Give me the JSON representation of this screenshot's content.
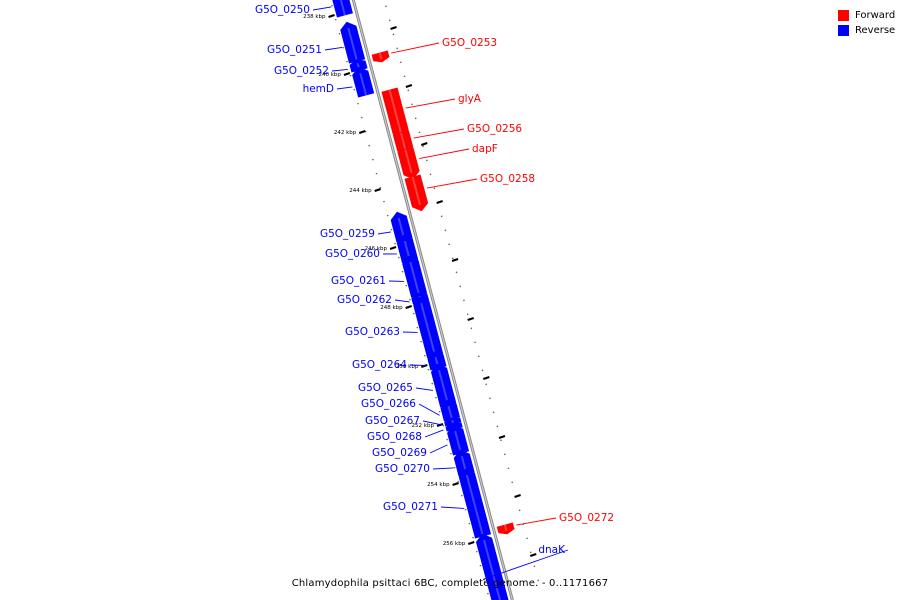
{
  "caption": "Chlamydophila psittaci 6BC, complete genome. - 0..1171667",
  "legend": [
    {
      "label": "Forward",
      "color": "#ff0000"
    },
    {
      "label": "Reverse",
      "color": "#0000ff"
    }
  ],
  "colors": {
    "forward": "#ff0000",
    "reverse": "#0000ff",
    "backbone": "#888888"
  },
  "ticks": [
    {
      "label": "238 kbp",
      "kbp": 238
    },
    {
      "label": "240 kbp",
      "kbp": 240
    },
    {
      "label": "242 kbp",
      "kbp": 242
    },
    {
      "label": "244 kbp",
      "kbp": 244
    },
    {
      "label": "246 kbp",
      "kbp": 246
    },
    {
      "label": "248 kbp",
      "kbp": 248
    },
    {
      "label": "250 kbp",
      "kbp": 250
    },
    {
      "label": "252 kbp",
      "kbp": 252
    },
    {
      "label": "254 kbp",
      "kbp": 254
    },
    {
      "label": "256 kbp",
      "kbp": 256
    }
  ],
  "genes": [
    {
      "name": "G5O_0250",
      "strand": "reverse"
    },
    {
      "name": "G5O_0251",
      "strand": "reverse"
    },
    {
      "name": "G5O_0252",
      "strand": "reverse"
    },
    {
      "name": "hemD",
      "strand": "reverse"
    },
    {
      "name": "G5O_0253",
      "strand": "forward"
    },
    {
      "name": "glyA",
      "strand": "forward"
    },
    {
      "name": "G5O_0256",
      "strand": "forward"
    },
    {
      "name": "dapF",
      "strand": "forward"
    },
    {
      "name": "G5O_0258",
      "strand": "forward"
    },
    {
      "name": "G5O_0259",
      "strand": "reverse"
    },
    {
      "name": "G5O_0260",
      "strand": "reverse"
    },
    {
      "name": "G5O_0261",
      "strand": "reverse"
    },
    {
      "name": "G5O_0262",
      "strand": "reverse"
    },
    {
      "name": "G5O_0263",
      "strand": "reverse"
    },
    {
      "name": "G5O_0264",
      "strand": "reverse"
    },
    {
      "name": "G5O_0265",
      "strand": "reverse"
    },
    {
      "name": "G5O_0266",
      "strand": "reverse"
    },
    {
      "name": "G5O_0267",
      "strand": "reverse"
    },
    {
      "name": "G5O_0268",
      "strand": "reverse"
    },
    {
      "name": "G5O_0269",
      "strand": "reverse"
    },
    {
      "name": "G5O_0270",
      "strand": "reverse"
    },
    {
      "name": "G5O_0271",
      "strand": "reverse"
    },
    {
      "name": "G5O_0272",
      "strand": "forward"
    },
    {
      "name": "dnaK",
      "strand": "reverse"
    }
  ]
}
